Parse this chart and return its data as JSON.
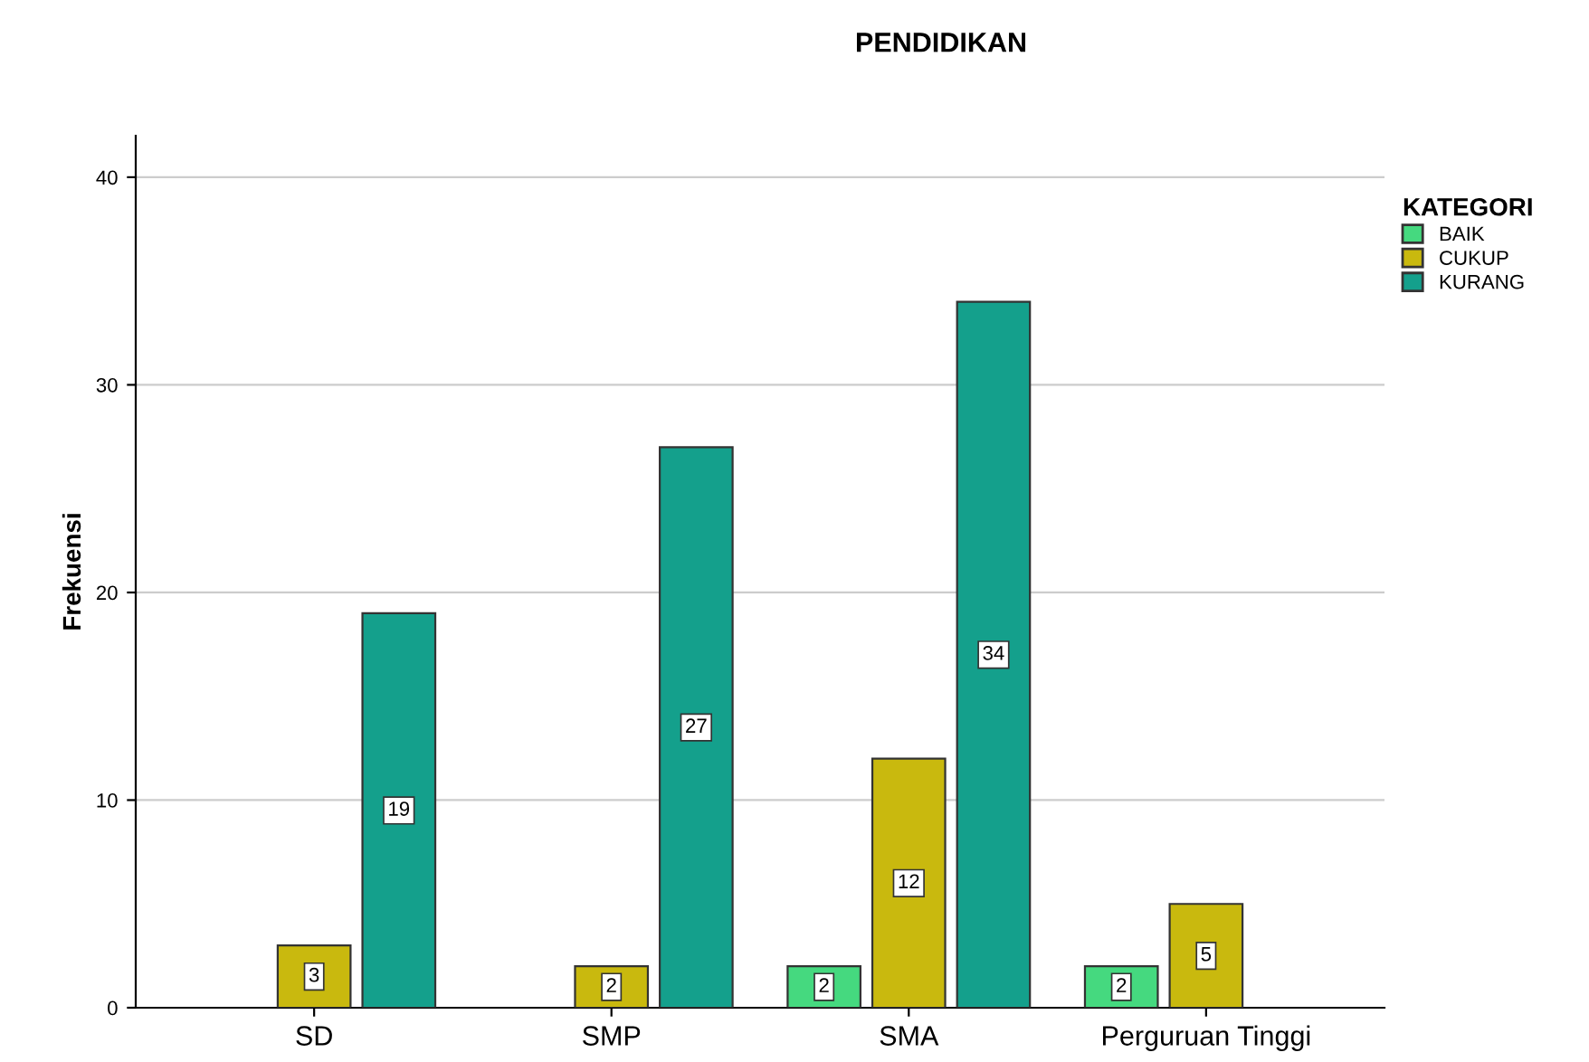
{
  "chart_data": {
    "type": "bar",
    "title": "PENDIDIKAN",
    "ylabel": "Frekuensi",
    "legend_title": "KATEGORI",
    "categories": [
      "SD",
      "SMP",
      "SMA",
      "Perguruan Tinggi"
    ],
    "series": [
      {
        "name": "BAIK",
        "color": "#45d97f",
        "values": [
          null,
          null,
          2,
          2
        ]
      },
      {
        "name": "CUKUP",
        "color": "#c9b90e",
        "values": [
          3,
          2,
          12,
          5
        ]
      },
      {
        "name": "KURANG",
        "color": "#14a08c",
        "values": [
          19,
          27,
          34,
          null
        ]
      }
    ],
    "ylim": [
      0,
      42
    ],
    "yticks": [
      0,
      10,
      20,
      30,
      40
    ],
    "grid": "y",
    "legend": "top right",
    "data_labels": true
  }
}
